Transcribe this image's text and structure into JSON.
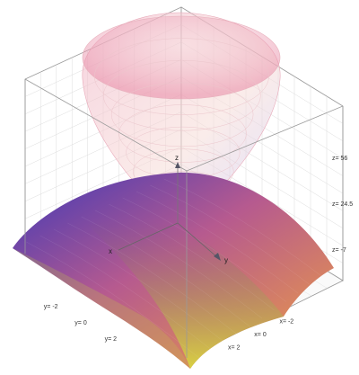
{
  "chart_data": {
    "type": "surface3d",
    "title": "",
    "axes": {
      "x": {
        "label": "x",
        "range": [
          -3,
          3
        ],
        "ticks": [
          -2,
          0,
          2
        ],
        "tick_labels": [
          "x= -2",
          "x= 0",
          "x= 2"
        ]
      },
      "y": {
        "label": "y",
        "range": [
          -3,
          3
        ],
        "ticks": [
          -2,
          0,
          2
        ],
        "tick_labels": [
          "y= -2",
          "y= 0",
          "y= 2"
        ]
      },
      "z": {
        "label": "z",
        "range": [
          -7,
          56
        ],
        "ticks": [
          -7,
          24.5,
          56
        ],
        "tick_labels": [
          "z= -7",
          "z= 24.5",
          "z= 56"
        ]
      }
    },
    "grid": true,
    "legend": "none",
    "surfaces": [
      {
        "shape": "paraboloid opening upward",
        "z_min": 5,
        "z_max": 56,
        "color": "#f4b8c4",
        "opacity": 0.45
      },
      {
        "shape": "dome opening downward",
        "z_min": -7,
        "z_max": 5,
        "colors": [
          "#3d38b8",
          "#c65c8c",
          "#efa040",
          "#d8d840"
        ]
      }
    ]
  }
}
